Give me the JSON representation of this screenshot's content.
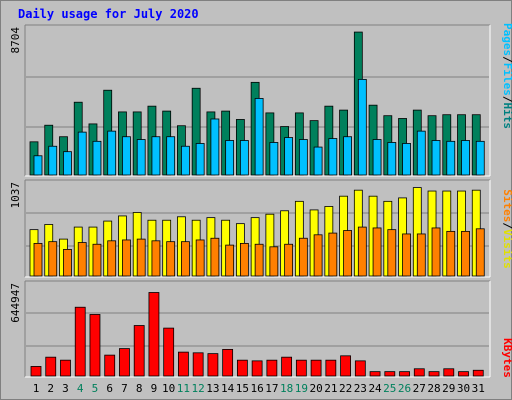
{
  "title": "Daily usage for July 2020",
  "colors": {
    "hits": "#00805c",
    "files": "#00c0ff",
    "visits": "#ffff00",
    "sites": "#ff8000",
    "kbytes": "#ff0000",
    "weekend_label": "#00805c",
    "title": "#0000ff",
    "panel_bg": "#c0c0c0"
  },
  "chart_data": [
    {
      "type": "bar",
      "panel": "hits-files",
      "ymax_label": "8704",
      "ylim": [
        0,
        8704
      ],
      "categories": [
        "1",
        "2",
        "3",
        "4",
        "5",
        "6",
        "7",
        "8",
        "9",
        "10",
        "11",
        "12",
        "13",
        "14",
        "15",
        "16",
        "17",
        "18",
        "19",
        "20",
        "21",
        "22",
        "23",
        "24",
        "25",
        "26",
        "27",
        "28",
        "29",
        "30",
        "31"
      ],
      "series": [
        {
          "name": "Hits",
          "values": [
            2020,
            3030,
            2330,
            4430,
            3110,
            5160,
            3840,
            3840,
            4190,
            3890,
            3000,
            5280,
            3840,
            3890,
            3380,
            5640,
            3780,
            2950,
            3780,
            3310,
            4190,
            3950,
            8700,
            4250,
            3610,
            3440,
            3950,
            3610,
            3670,
            3670,
            3670
          ]
        },
        {
          "name": "Files",
          "values": [
            1170,
            1750,
            1420,
            2610,
            2050,
            2670,
            2330,
            2160,
            2330,
            2330,
            1750,
            1920,
            3410,
            2100,
            2100,
            4660,
            1980,
            2280,
            2160,
            1700,
            2220,
            2330,
            5820,
            2160,
            1980,
            1920,
            2670,
            2100,
            2050,
            2100,
            2050
          ]
        }
      ],
      "legend": [
        {
          "name": "Pages",
          "color": "#00c0ff"
        },
        {
          "name": "Files",
          "color": "#00c0ff"
        },
        {
          "name": "Hits",
          "color": "#00805c"
        }
      ]
    },
    {
      "type": "bar",
      "panel": "visits-sites",
      "ymax_label": "1037",
      "ylim": [
        0,
        1037
      ],
      "categories": [
        "1",
        "2",
        "3",
        "4",
        "5",
        "6",
        "7",
        "8",
        "9",
        "10",
        "11",
        "12",
        "13",
        "14",
        "15",
        "16",
        "17",
        "18",
        "19",
        "20",
        "21",
        "22",
        "23",
        "24",
        "25",
        "26",
        "27",
        "28",
        "29",
        "30",
        "31"
      ],
      "series": [
        {
          "name": "Visits",
          "values": [
            540,
            600,
            430,
            570,
            570,
            640,
            700,
            740,
            650,
            650,
            690,
            650,
            680,
            650,
            610,
            680,
            720,
            760,
            870,
            770,
            810,
            930,
            1000,
            930,
            870,
            910,
            1030,
            990,
            990,
            990,
            1000
          ]
        },
        {
          "name": "Sites",
          "values": [
            380,
            400,
            310,
            390,
            370,
            410,
            420,
            430,
            410,
            400,
            400,
            420,
            440,
            360,
            380,
            370,
            340,
            370,
            440,
            480,
            500,
            530,
            570,
            560,
            540,
            490,
            490,
            560,
            520,
            520,
            550
          ]
        }
      ],
      "legend": [
        {
          "name": "Sites",
          "color": "#ff8000"
        },
        {
          "name": "Visits",
          "color": "#ffff00"
        }
      ]
    },
    {
      "type": "bar",
      "panel": "kbytes",
      "ymax_label": "644947",
      "ylim": [
        0,
        644947
      ],
      "categories": [
        "1",
        "2",
        "3",
        "4",
        "5",
        "6",
        "7",
        "8",
        "9",
        "10",
        "11",
        "12",
        "13",
        "14",
        "15",
        "16",
        "17",
        "18",
        "19",
        "20",
        "21",
        "22",
        "23",
        "24",
        "25",
        "26",
        "27",
        "28",
        "29",
        "30",
        "31"
      ],
      "series": [
        {
          "name": "KBytes",
          "values": [
            70000,
            138000,
            116000,
            504000,
            451000,
            153000,
            201000,
            370000,
            612000,
            351000,
            175000,
            170000,
            164000,
            195000,
            116000,
            111000,
            116000,
            138000,
            116000,
            116000,
            116000,
            148000,
            111000,
            32000,
            32000,
            32000,
            53000,
            32000,
            53000,
            32000,
            42000
          ]
        }
      ],
      "legend": [
        {
          "name": "KBytes",
          "color": "#ff0000"
        }
      ]
    }
  ],
  "x_labels": [
    {
      "label": "1",
      "weekend": false
    },
    {
      "label": "2",
      "weekend": false
    },
    {
      "label": "3",
      "weekend": false
    },
    {
      "label": "4",
      "weekend": true
    },
    {
      "label": "5",
      "weekend": true
    },
    {
      "label": "6",
      "weekend": false
    },
    {
      "label": "7",
      "weekend": false
    },
    {
      "label": "8",
      "weekend": false
    },
    {
      "label": "9",
      "weekend": false
    },
    {
      "label": "10",
      "weekend": false
    },
    {
      "label": "11",
      "weekend": true
    },
    {
      "label": "12",
      "weekend": true
    },
    {
      "label": "13",
      "weekend": false
    },
    {
      "label": "14",
      "weekend": false
    },
    {
      "label": "15",
      "weekend": false
    },
    {
      "label": "16",
      "weekend": false
    },
    {
      "label": "17",
      "weekend": false
    },
    {
      "label": "18",
      "weekend": true
    },
    {
      "label": "19",
      "weekend": true
    },
    {
      "label": "20",
      "weekend": false
    },
    {
      "label": "21",
      "weekend": false
    },
    {
      "label": "22",
      "weekend": false
    },
    {
      "label": "23",
      "weekend": false
    },
    {
      "label": "24",
      "weekend": false
    },
    {
      "label": "25",
      "weekend": true
    },
    {
      "label": "26",
      "weekend": true
    },
    {
      "label": "27",
      "weekend": false
    },
    {
      "label": "28",
      "weekend": false
    },
    {
      "label": "29",
      "weekend": false
    },
    {
      "label": "30",
      "weekend": false
    },
    {
      "label": "31",
      "weekend": false
    }
  ]
}
